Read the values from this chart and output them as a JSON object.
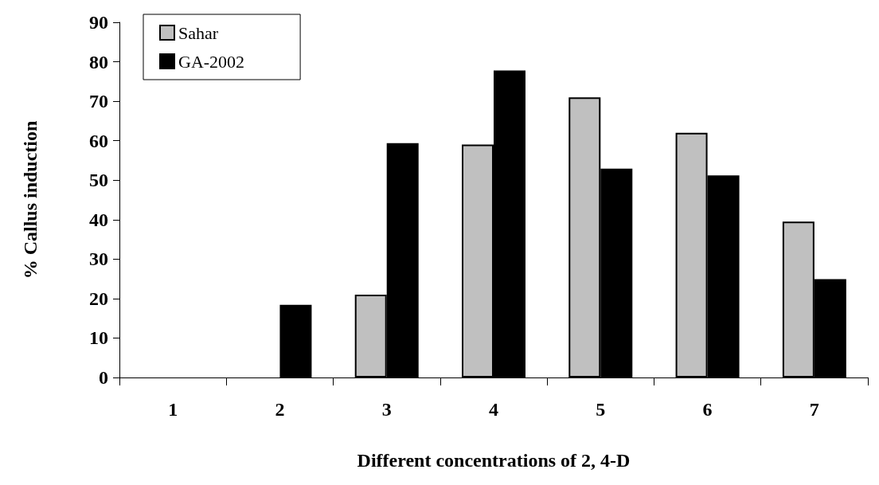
{
  "chart_data": {
    "type": "bar",
    "xlabel": "Different concentrations of 2, 4-D",
    "ylabel": "% Callus induction",
    "categories": [
      "1",
      "2",
      "3",
      "4",
      "5",
      "6",
      "7"
    ],
    "series": [
      {
        "name": "Sahar",
        "color": "#c0c0c0",
        "values": [
          null,
          null,
          21,
          59,
          71,
          62,
          39.5
        ]
      },
      {
        "name": "GA-2002",
        "color": "#000000",
        "values": [
          null,
          18.4,
          59.4,
          77.8,
          52.9,
          51.2,
          24.9
        ]
      }
    ],
    "ylim": [
      0,
      90
    ],
    "yticks": [
      0,
      10,
      20,
      30,
      40,
      50,
      60,
      70,
      80,
      90
    ],
    "grid": false,
    "legend": "top left"
  }
}
